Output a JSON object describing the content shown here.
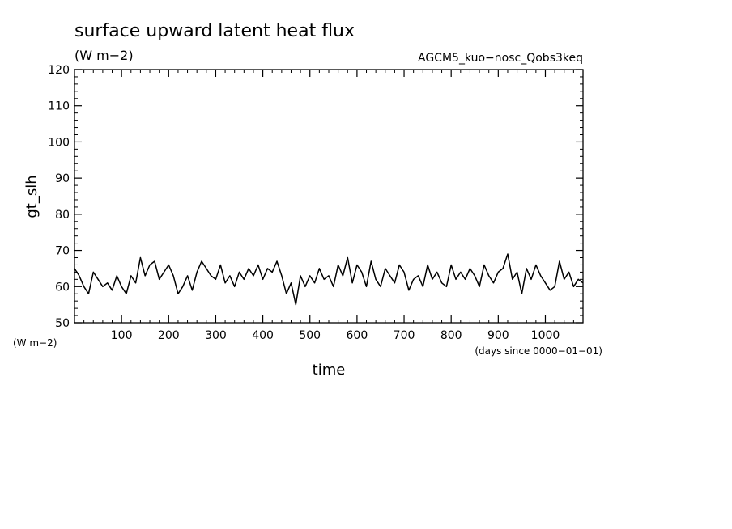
{
  "chart_data": {
    "type": "line",
    "title": "surface upward latent heat flux",
    "units": "(W m−2)",
    "experiment": "AGCM5_kuo−nosc_Qobs3keq",
    "ylabel": "gt_slh",
    "y_units_label": "(W m−2)",
    "xlabel": "time",
    "x_units_label": "(days since 0000−01−01)",
    "xlim": [
      0,
      1080
    ],
    "ylim": [
      50,
      120
    ],
    "x_ticks": [
      100,
      200,
      300,
      400,
      500,
      600,
      700,
      800,
      900,
      1000
    ],
    "y_ticks": [
      50,
      60,
      70,
      80,
      90,
      100,
      110,
      120
    ],
    "grid": false,
    "series": [
      {
        "x": [
          0,
          10,
          20,
          30,
          40,
          50,
          60,
          70,
          80,
          90,
          100,
          110,
          120,
          130,
          140,
          150,
          160,
          170,
          180,
          190,
          200,
          210,
          220,
          230,
          240,
          250,
          260,
          270,
          280,
          290,
          300,
          310,
          320,
          330,
          340,
          350,
          360,
          370,
          380,
          390,
          400,
          410,
          420,
          430,
          440,
          450,
          460,
          470,
          480,
          490,
          500,
          510,
          520,
          530,
          540,
          550,
          560,
          570,
          580,
          590,
          600,
          610,
          620,
          630,
          640,
          650,
          660,
          670,
          680,
          690,
          700,
          710,
          720,
          730,
          740,
          750,
          760,
          770,
          780,
          790,
          800,
          810,
          820,
          830,
          840,
          850,
          860,
          870,
          880,
          890,
          900,
          910,
          920,
          930,
          940,
          950,
          960,
          970,
          980,
          990,
          1000,
          1010,
          1020,
          1030,
          1040,
          1050,
          1060,
          1070,
          1080
        ],
        "values": [
          65,
          63,
          60,
          58,
          64,
          62,
          60,
          61,
          59,
          63,
          60,
          58,
          63,
          61,
          68,
          63,
          66,
          67,
          62,
          64,
          66,
          63,
          58,
          60,
          63,
          59,
          64,
          67,
          65,
          63,
          62,
          66,
          61,
          63,
          60,
          64,
          62,
          65,
          63,
          66,
          62,
          65,
          64,
          67,
          63,
          58,
          61,
          55,
          63,
          60,
          63,
          61,
          65,
          62,
          63,
          60,
          66,
          63,
          68,
          61,
          66,
          64,
          60,
          67,
          62,
          60,
          65,
          63,
          61,
          66,
          64,
          59,
          62,
          63,
          60,
          66,
          62,
          64,
          61,
          60,
          66,
          62,
          64,
          62,
          65,
          63,
          60,
          66,
          63,
          61,
          64,
          65,
          69,
          62,
          64,
          58,
          65,
          62,
          66,
          63,
          61,
          59,
          60,
          67,
          62,
          64,
          60,
          62,
          61
        ]
      }
    ]
  }
}
